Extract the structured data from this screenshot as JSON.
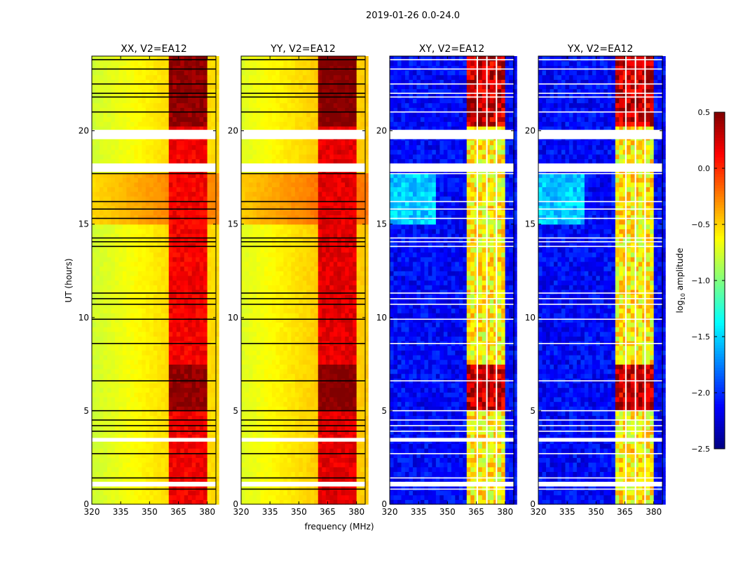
{
  "chart_data": {
    "type": "heatmap",
    "title": "2019-01-26 0.0-24.0",
    "xlabel": "frequency (MHz)",
    "ylabel": "UT (hours)",
    "xlim": [
      320,
      384.5
    ],
    "ylim": [
      0,
      24
    ],
    "xticks": [
      "320",
      "335",
      "350",
      "365",
      "380"
    ],
    "yticks": [
      "0",
      "5",
      "10",
      "15",
      "20"
    ],
    "xtick_values": [
      320,
      335,
      350,
      365,
      380
    ],
    "ytick_values": [
      0,
      5,
      10,
      15,
      20
    ],
    "colormap": "jet",
    "colorbar": {
      "label": "log10 amplitude",
      "label_main": "log",
      "label_sub": "10",
      "label_rest": " amplitude",
      "range": [
        -2.5,
        0.5
      ],
      "ticks": [
        "0.5",
        "0.0",
        "−0.5",
        "−1.0",
        "−1.5",
        "−2.0",
        "−2.5"
      ],
      "tick_values": [
        0.5,
        0.0,
        -0.5,
        -1.0,
        -1.5,
        -2.0,
        -2.5
      ]
    },
    "panels": [
      {
        "title": "XX, V2=EA12",
        "kind": "parallel",
        "base": -0.55,
        "band": 0.05,
        "flag_color": "#000000"
      },
      {
        "title": "YY, V2=EA12",
        "kind": "parallel",
        "base": -0.5,
        "band": 0.1,
        "flag_color": "#000000"
      },
      {
        "title": "XY, V2=EA12",
        "kind": "cross",
        "base": -2.3,
        "band": -0.9,
        "flag_color": "#ffffff"
      },
      {
        "title": "YX, V2=EA12",
        "kind": "cross",
        "base": -2.3,
        "band": -0.9,
        "flag_color": "#ffffff"
      }
    ],
    "band_mhz": [
      361,
      380
    ],
    "channel_gaps_mhz": [
      365.5,
      370.5,
      375.5
    ],
    "flagged_hours": [
      [
        19.55,
        20.05
      ],
      [
        17.8,
        18.25
      ],
      [
        3.35,
        3.55
      ],
      [
        0.95,
        1.2
      ]
    ],
    "flag_lines_hours": [
      23.8,
      23.3,
      22.5,
      22.0,
      21.8,
      21.0,
      17.7,
      16.2,
      15.8,
      15.3,
      14.25,
      14.05,
      13.8,
      11.3,
      11.0,
      10.7,
      9.9,
      8.6,
      6.6,
      5.0,
      4.5,
      4.2,
      3.9,
      2.7,
      1.4,
      0.8
    ],
    "bright_hours": [
      [
        5.0,
        7.5
      ],
      [
        20.2,
        24.0
      ]
    ],
    "elevated_hours": [
      [
        15.0,
        17.7
      ]
    ]
  }
}
